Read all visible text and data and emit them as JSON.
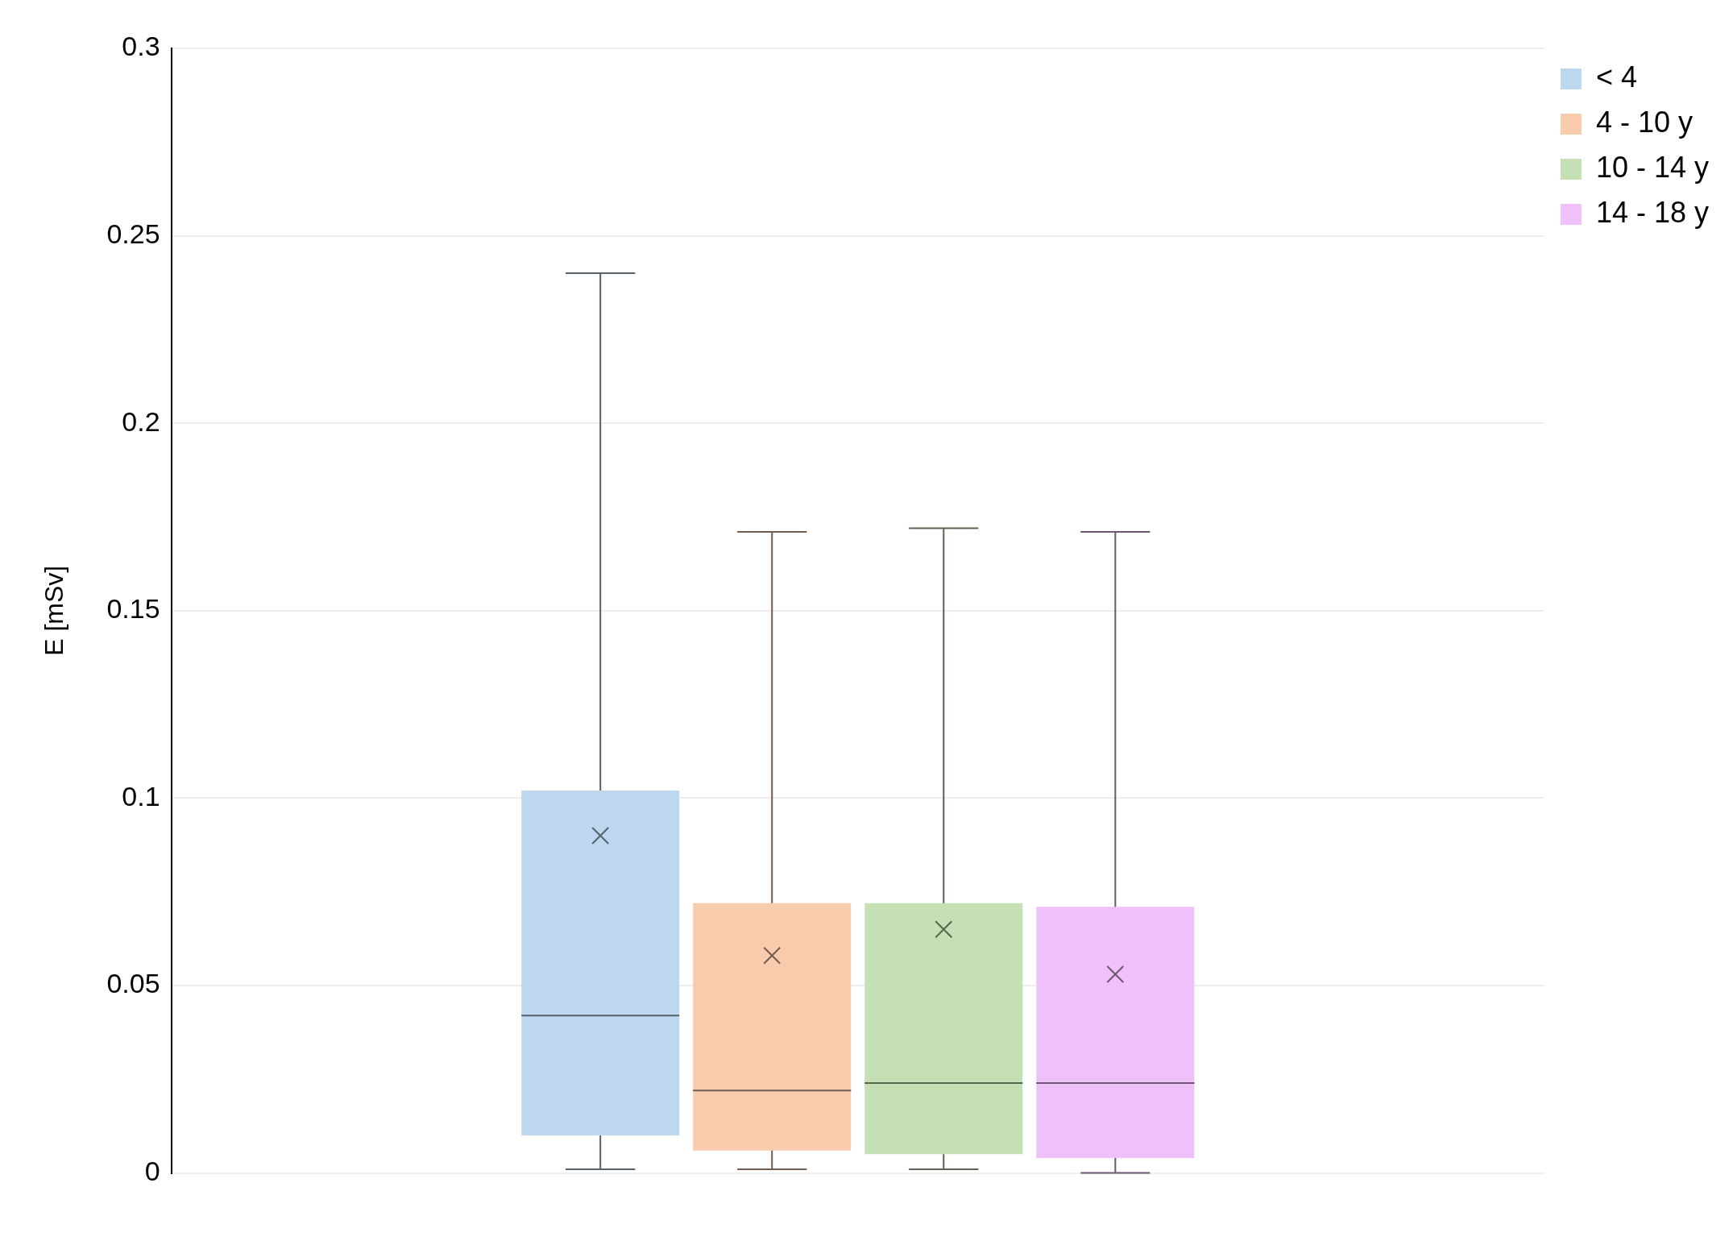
{
  "chart_data": {
    "type": "box",
    "ylabel": "E [mSv]",
    "categories": [
      null
    ],
    "ylim": [
      0,
      0.3
    ],
    "yticks": [
      0,
      0.05,
      0.1,
      0.15,
      0.2,
      0.25,
      0.3
    ],
    "grid": "y",
    "legend": "top right",
    "series": [
      {
        "name": "< 4",
        "color": "#bdd7ee",
        "boxes": [
          {
            "low": 0.001,
            "q1": 0.01,
            "median": 0.042,
            "q3": 0.102,
            "high": 0.24,
            "mean": 0.09
          }
        ]
      },
      {
        "name": "4 - 10 y",
        "color": "#f8cbad",
        "boxes": [
          {
            "low": 0.001,
            "q1": 0.006,
            "median": 0.022,
            "q3": 0.072,
            "high": 0.171,
            "mean": 0.058
          }
        ]
      },
      {
        "name": "10 - 14 y",
        "color": "#c5e0b4",
        "boxes": [
          {
            "low": 0.001,
            "q1": 0.005,
            "median": 0.024,
            "q3": 0.072,
            "high": 0.172,
            "mean": 0.065
          }
        ]
      },
      {
        "name": "14 - 18 y",
        "color": "#f0c0fb",
        "boxes": [
          {
            "low": 0,
            "q1": 0.004,
            "median": 0.024,
            "q3": 0.071,
            "high": 0.171,
            "mean": 0.053
          }
        ]
      }
    ]
  }
}
